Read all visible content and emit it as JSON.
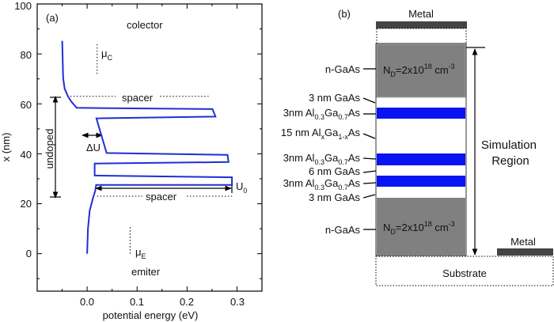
{
  "panel_a": {
    "label": "(a)",
    "colors": {
      "curve": "#1f2fd6",
      "axes": "#000000"
    },
    "annotations": {
      "colector": "colector",
      "emiter": "emiter",
      "mu_c": {
        "sym": "μ",
        "sub": "C"
      },
      "mu_e": {
        "sym": "μ",
        "sub": "E"
      },
      "spacer_top": "spacer",
      "spacer_bottom": "spacer",
      "undoped": "undoped",
      "delta_u": "ΔU",
      "u0": {
        "sym": "U",
        "sub": "0"
      }
    }
  },
  "chart_data": {
    "type": "line",
    "xlabel": "potential energy (eV)",
    "ylabel": "x (nm)",
    "xlim": [
      -0.1,
      0.35
    ],
    "ylim": [
      -15,
      100
    ],
    "xticks": [
      "0.0",
      "0.1",
      "0.2",
      "0.3"
    ],
    "xtick_values": [
      0.0,
      0.1,
      0.2,
      0.3
    ],
    "yticks": [
      "0",
      "20",
      "40",
      "60",
      "80",
      "100"
    ],
    "ytick_values": [
      0,
      20,
      40,
      60,
      80,
      100
    ],
    "grid": false,
    "series": [
      {
        "x": [
          0.0,
          0.0016,
          0.005,
          0.012,
          0.016,
          0.018,
          0.29,
          0.29,
          0.017,
          0.015,
          0.015,
          0.283,
          0.281,
          0.039,
          0.0185,
          0.257,
          0.251,
          -0.021,
          -0.032,
          -0.038,
          -0.045,
          -0.048,
          -0.05
        ],
        "y": [
          0,
          9.8,
          17.2,
          22.5,
          25,
          27.5,
          27.5,
          30.6,
          31.3,
          31.3,
          36.1,
          36.7,
          39.6,
          40.3,
          54.2,
          54.9,
          57.9,
          58.4,
          61,
          62.9,
          66,
          70.3,
          85.2
        ]
      }
    ],
    "reference_lines": [
      {
        "type": "dotted-horizontal",
        "y": 63,
        "x_range": [
          -0.04,
          0.243
        ]
      },
      {
        "type": "dotted-horizontal",
        "y": 23,
        "x_range": [
          0.02,
          0.29
        ]
      },
      {
        "type": "dotted-vertical",
        "x": 0.02,
        "y_range": [
          72,
          84
        ]
      },
      {
        "type": "dotted-vertical",
        "x": 0.086,
        "y_range": [
          0,
          11
        ]
      }
    ]
  },
  "panel_b": {
    "label": "(b)",
    "metal_top": "Metal",
    "metal_right": "Metal",
    "substrate": "Substrate",
    "simulation_region": [
      "Simulation",
      "Region"
    ],
    "colors": {
      "doped": "#808080",
      "barrier": "#0a14f0",
      "metal": "#444444",
      "undoped": "#ffffff"
    },
    "doping_top": {
      "n": "N",
      "nsub": "D",
      "eq": "=2x10",
      "exp": "18",
      "unit": " cm",
      "unit_exp": "-3"
    },
    "doping_bottom": {
      "n": "N",
      "nsub": "D",
      "eq": "=2x10",
      "exp": "18",
      "unit": " cm",
      "unit_exp": "-3"
    },
    "layers": {
      "ngaas_top": "n-GaAs",
      "gaas3_top": "3 nm GaAs",
      "barrier1": {
        "a": "3nm Al",
        "s1": "0.3",
        "b": "Ga",
        "s2": "0.7",
        "c": "As"
      },
      "graded": {
        "a": "15 nm Al",
        "s1": "x",
        "b": "Ga",
        "s2": "1-x",
        "c": "As"
      },
      "barrier2": {
        "a": "3nm Al",
        "s1": "0.3",
        "b": "Ga",
        "s2": "0.7",
        "c": "As"
      },
      "gaas6": "6 nm GaAs",
      "barrier3": {
        "a": "3nm Al",
        "s1": "0.3",
        "b": "Ga",
        "s2": "0.7",
        "c": "As"
      },
      "gaas3_bottom": "3 nm GaAs",
      "ngaas_bottom": "n-GaAs"
    }
  }
}
